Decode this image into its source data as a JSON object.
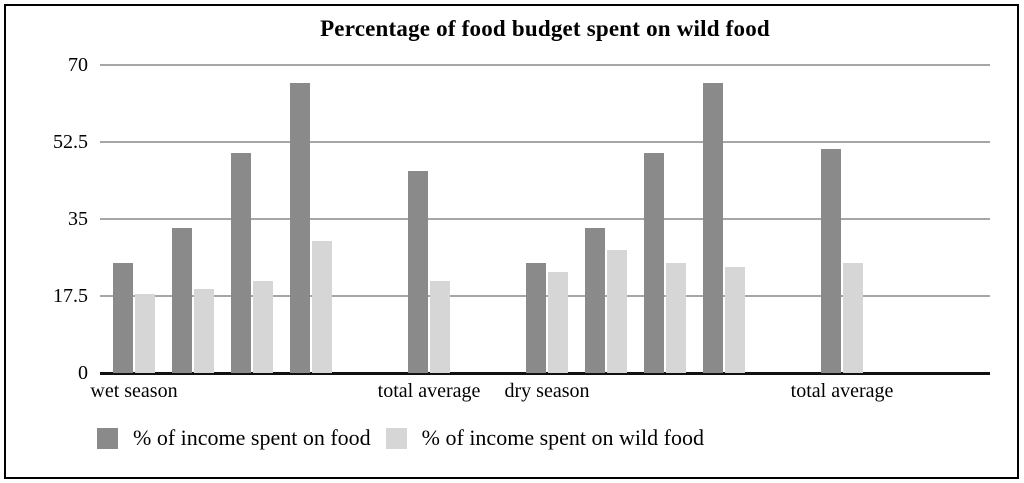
{
  "title": "Percentage of food budget spent on wild food",
  "chart_data": {
    "type": "bar",
    "title": "Percentage of food budget spent on wild food",
    "ylim": [
      0,
      70
    ],
    "yticks": [
      "0",
      "17.5",
      "35",
      "52.5",
      "70"
    ],
    "grid": true,
    "legend_position": "bottom",
    "categories": [
      "wet season",
      "",
      "",
      "",
      "total average",
      "dry season",
      "",
      "",
      "",
      "total average"
    ],
    "gaps_before": [
      4,
      5,
      9
    ],
    "series": [
      {
        "name": "% of income spent on food",
        "color": "#8a8a8a",
        "values": [
          25,
          33,
          50,
          66,
          46,
          25,
          33,
          50,
          66,
          51
        ]
      },
      {
        "name": "% of income spent on wild food",
        "color": "#d6d6d6",
        "values": [
          18,
          19,
          21,
          30,
          21,
          23,
          28,
          25,
          24,
          25
        ]
      }
    ],
    "colors": {
      "gridline": "#a6a6a6",
      "axis_line": "#111111",
      "text": "#000000",
      "border": "#000000"
    }
  }
}
